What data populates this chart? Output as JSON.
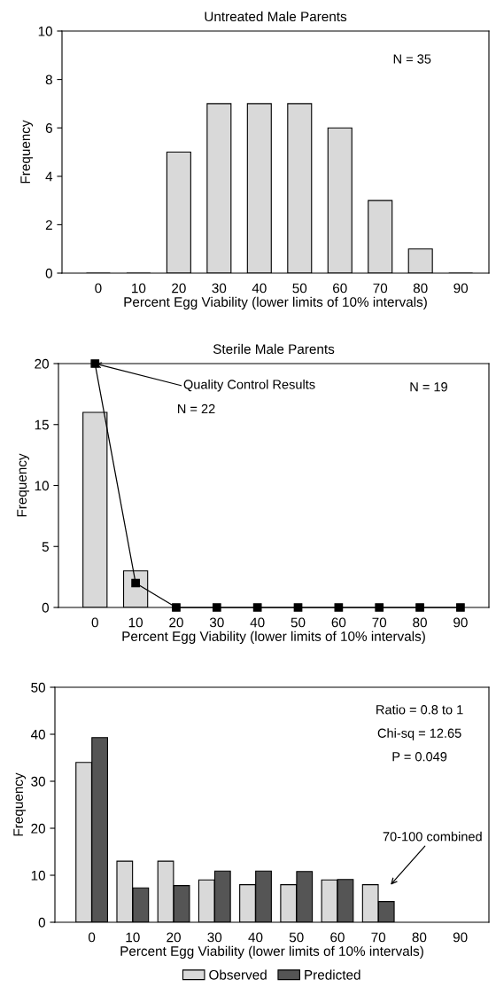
{
  "chart_data": [
    {
      "type": "bar",
      "title": "Untreated Male Parents",
      "xlabel": "Percent Egg Viability (lower limits of 10% intervals)",
      "ylabel": "Frequency",
      "categories": [
        "0",
        "10",
        "20",
        "30",
        "40",
        "50",
        "60",
        "70",
        "80",
        "90"
      ],
      "series": [
        {
          "color": "#d9d9d9",
          "values": [
            0,
            0,
            5,
            7,
            7,
            7,
            6,
            3,
            1,
            0
          ]
        }
      ],
      "ylim": [
        0,
        10
      ],
      "yticks": [
        0,
        2,
        4,
        6,
        8,
        10
      ],
      "annotations": [
        "N = 35"
      ],
      "grid": false,
      "legend": false
    },
    {
      "type": "bar",
      "title": "Sterile Male Parents",
      "xlabel": "Percent Egg Viability (lower limits of 10% intervals)",
      "ylabel": "Frequency",
      "categories": [
        "0",
        "10",
        "20",
        "30",
        "40",
        "50",
        "60",
        "70",
        "80",
        "90"
      ],
      "series": [
        {
          "color": "#d9d9d9",
          "values": [
            16,
            3,
            null,
            null,
            null,
            null,
            null,
            null,
            null,
            null
          ]
        },
        {
          "type": "line",
          "color": "#000000",
          "marker": "square",
          "values": [
            20,
            2,
            0,
            0,
            0,
            0,
            0,
            0,
            0,
            0
          ]
        }
      ],
      "ylim": [
        0,
        20
      ],
      "yticks": [
        0,
        5,
        10,
        15,
        20
      ],
      "annotations": [
        {
          "text": "Quality Control Results",
          "x": "0",
          "y": 20
        },
        "N = 22",
        "N = 19"
      ],
      "grid": false,
      "legend": false
    },
    {
      "type": "bar",
      "xlabel": "Percent Egg Viability (lower limits of 10% intervals)",
      "ylabel": "Frequency",
      "categories": [
        "0",
        "10",
        "20",
        "30",
        "40",
        "50",
        "60",
        "70",
        "80",
        "90"
      ],
      "series": [
        {
          "name": "Observed",
          "color": "#d9d9d9",
          "values": [
            34,
            13,
            13,
            9,
            8,
            8,
            9,
            8,
            null,
            null
          ]
        },
        {
          "name": "Predicted",
          "color": "#555555",
          "values": [
            39.3,
            7.3,
            7.8,
            10.9,
            10.9,
            10.8,
            9.1,
            4.4,
            null,
            null
          ]
        }
      ],
      "ylim": [
        0,
        50
      ],
      "yticks": [
        0,
        10,
        20,
        30,
        40,
        50
      ],
      "annotations": [
        "Ratio = 0.8 to 1",
        "Chi-sq = 12.65",
        "P = 0.049",
        "70-100 combined"
      ],
      "grid": false,
      "legend": "bottom"
    }
  ]
}
